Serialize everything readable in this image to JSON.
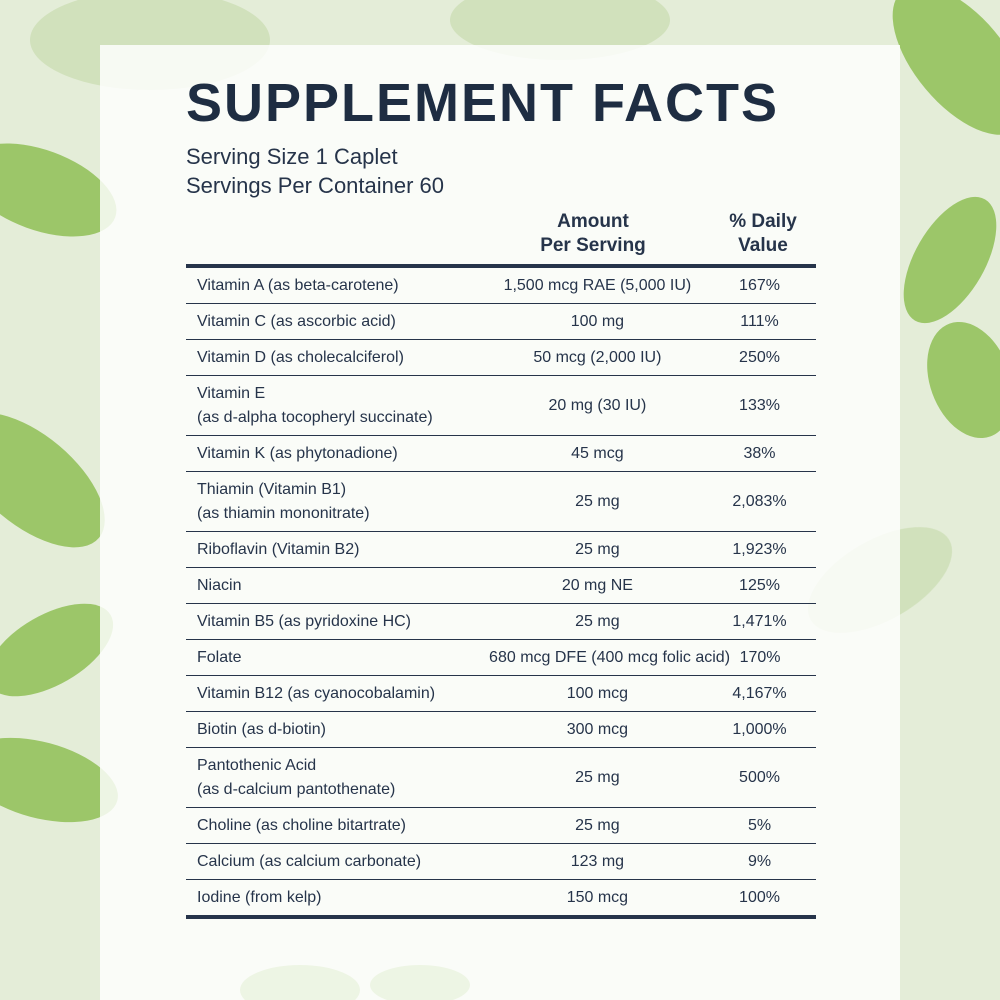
{
  "header": {
    "title": "SUPPLEMENT FACTS",
    "serving_size": "Serving Size 1 Caplet",
    "servings_per_container": "Servings Per Container 60"
  },
  "table": {
    "columns": {
      "amount": [
        "Amount",
        "Per Serving"
      ],
      "daily_value": [
        "% Daily",
        "Value"
      ]
    },
    "rows": [
      {
        "name": [
          "Vitamin A (as beta-carotene)"
        ],
        "amount": "1,500 mcg RAE (5,000 IU)",
        "dv": "167%"
      },
      {
        "name": [
          "Vitamin C (as ascorbic acid)"
        ],
        "amount": "100 mg",
        "dv": "111%"
      },
      {
        "name": [
          "Vitamin D (as cholecalciferol)"
        ],
        "amount": "50 mcg (2,000 IU)",
        "dv": "250%"
      },
      {
        "name": [
          "Vitamin E",
          "(as d-alpha tocopheryl succinate)"
        ],
        "amount": "20 mg (30 IU)",
        "dv": "133%"
      },
      {
        "name": [
          "Vitamin K (as phytonadione)"
        ],
        "amount": "45 mcg",
        "dv": "38%"
      },
      {
        "name": [
          "Thiamin (Vitamin B1)",
          "(as thiamin mononitrate)"
        ],
        "amount": "25 mg",
        "dv": "2,083%"
      },
      {
        "name": [
          "Riboflavin (Vitamin B2)"
        ],
        "amount": "25 mg",
        "dv": "1,923%"
      },
      {
        "name": [
          "Niacin"
        ],
        "amount": "20 mg NE",
        "dv": "125%"
      },
      {
        "name": [
          "Vitamin B5 (as pyridoxine HC)"
        ],
        "amount": "25 mg",
        "dv": "1,471%"
      },
      {
        "name": [
          "Folate"
        ],
        "amount": "680 mcg DFE (400 mcg folic acid)",
        "dv": "170%"
      },
      {
        "name": [
          "Vitamin B12 (as cyanocobalamin)"
        ],
        "amount": "100 mcg",
        "dv": "4,167%"
      },
      {
        "name": [
          "Biotin (as d-biotin)"
        ],
        "amount": "300 mcg",
        "dv": "1,000%"
      },
      {
        "name": [
          "Pantothenic Acid",
          "(as d-calcium pantothenate)"
        ],
        "amount": "25 mg",
        "dv": "500%"
      },
      {
        "name": [
          "Choline (as choline bitartrate)"
        ],
        "amount": "25 mg",
        "dv": "5%"
      },
      {
        "name": [
          "Calcium (as calcium carbonate)"
        ],
        "amount": "123 mg",
        "dv": "9%"
      },
      {
        "name": [
          "Iodine (from kelp)"
        ],
        "amount": "150 mcg",
        "dv": "100%"
      }
    ]
  }
}
